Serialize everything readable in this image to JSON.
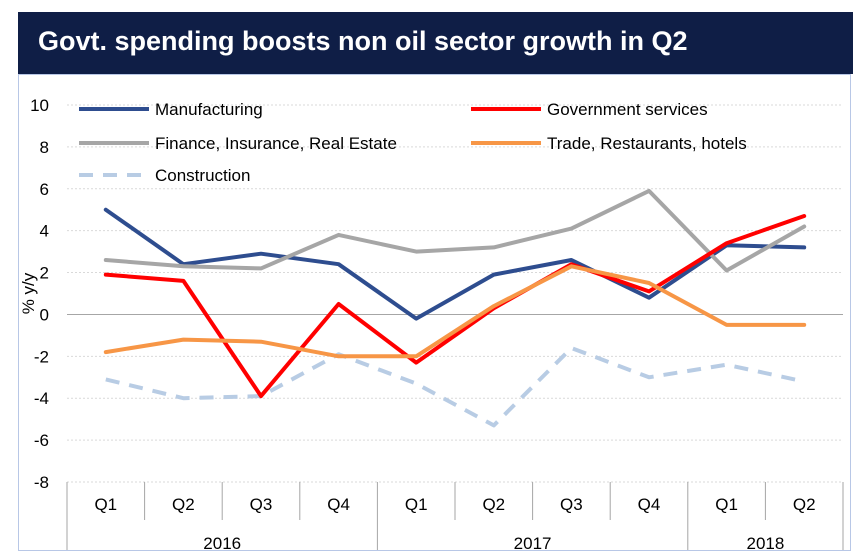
{
  "chart_data": {
    "type": "line",
    "title": "Govt. spending boosts non oil sector growth in Q2",
    "ylabel": "% y/y",
    "ylim": [
      -8,
      10
    ],
    "yticks": [
      10,
      8,
      6,
      4,
      2,
      0,
      -2,
      -4,
      -6,
      -8
    ],
    "grid": true,
    "legend_position": "top",
    "categories": [
      "Q1",
      "Q2",
      "Q3",
      "Q4",
      "Q1",
      "Q2",
      "Q3",
      "Q4",
      "Q1",
      "Q2"
    ],
    "year_groups": [
      {
        "label": "2016",
        "count": 4
      },
      {
        "label": "2017",
        "count": 4
      },
      {
        "label": "2018",
        "count": 2
      }
    ],
    "series": [
      {
        "name": "Manufacturing",
        "color": "#2e4d8f",
        "dashed": false,
        "values": [
          5.0,
          2.4,
          2.9,
          2.4,
          -0.2,
          1.9,
          2.6,
          0.8,
          3.3,
          3.2
        ]
      },
      {
        "name": "Finance, Insurance, Real Estate",
        "color": "#a6a6a6",
        "dashed": false,
        "values": [
          2.6,
          2.3,
          2.2,
          3.8,
          3.0,
          3.2,
          4.1,
          5.9,
          2.1,
          4.2
        ]
      },
      {
        "name": "Construction",
        "color": "#b8cce4",
        "dashed": true,
        "values": [
          -3.1,
          -4.0,
          -3.9,
          -1.9,
          -3.3,
          -5.3,
          -1.6,
          -3.0,
          -2.4,
          -3.2
        ]
      },
      {
        "name": "Government services",
        "color": "#ff0000",
        "dashed": false,
        "values": [
          1.9,
          1.6,
          -3.9,
          0.5,
          -2.3,
          0.3,
          2.4,
          1.1,
          3.4,
          4.7
        ]
      },
      {
        "name": "Trade, Restaurants, hotels",
        "color": "#f79646",
        "dashed": false,
        "values": [
          -1.8,
          -1.2,
          -1.3,
          -2.0,
          -2.0,
          0.4,
          2.3,
          1.5,
          -0.5,
          -0.5
        ]
      }
    ]
  }
}
